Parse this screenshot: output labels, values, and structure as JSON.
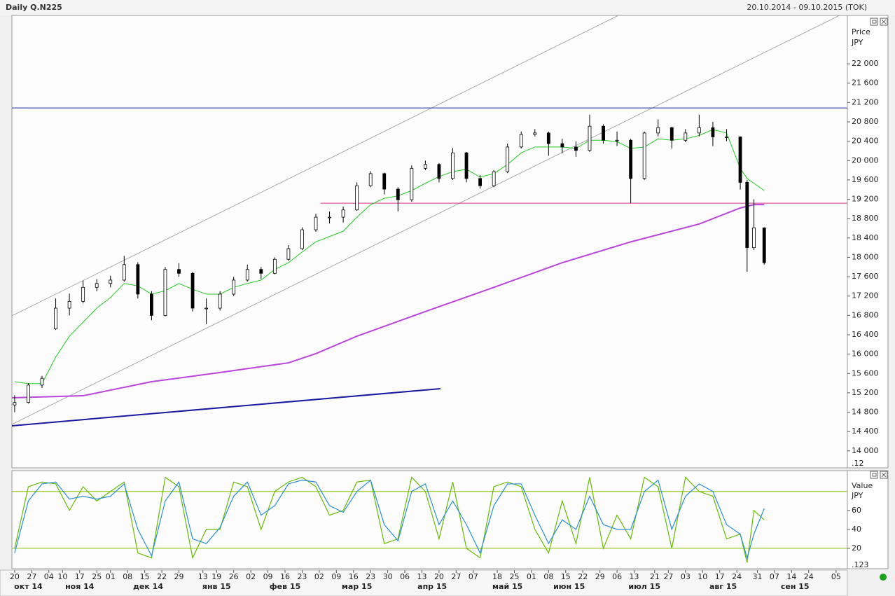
{
  "header": {
    "title": "Daily Q.N225",
    "range": "20.10.2014 - 09.10.2015 (TOK)"
  },
  "chart_data": [
    {
      "type": "candlestick",
      "ylabel": "Price",
      "yunit": "JPY",
      "corner_label": ".12",
      "xlim": [
        -0.8,
        243.3
      ],
      "ylim": [
        13650,
        23000
      ],
      "yticks": [
        {
          "value": 14000,
          "label": "14 000"
        },
        {
          "value": 14400,
          "label": "14 400"
        },
        {
          "value": 14800,
          "label": "14 800"
        },
        {
          "value": 15200,
          "label": "15 200"
        },
        {
          "value": 15600,
          "label": "15 600"
        },
        {
          "value": 16000,
          "label": "16 000"
        },
        {
          "value": 16400,
          "label": "16 400"
        },
        {
          "value": 16800,
          "label": "16 800"
        },
        {
          "value": 17200,
          "label": "17 200"
        },
        {
          "value": 17600,
          "label": "17 600"
        },
        {
          "value": 18000,
          "label": "18 000"
        },
        {
          "value": 18400,
          "label": "18 400"
        },
        {
          "value": 18800,
          "label": "18 800"
        },
        {
          "value": 19200,
          "label": "19 200"
        },
        {
          "value": 19600,
          "label": "19 600"
        },
        {
          "value": 20000,
          "label": "20 000"
        },
        {
          "value": 20400,
          "label": "20 400"
        },
        {
          "value": 20800,
          "label": "20 800"
        },
        {
          "value": 21200,
          "label": "21 200"
        },
        {
          "value": 21600,
          "label": "21 600"
        },
        {
          "value": 22000,
          "label": "22 000"
        }
      ],
      "up_color": "#ffffff",
      "down_color": "#000000",
      "x": [
        0,
        4,
        8,
        12,
        16,
        20,
        24,
        28,
        32,
        36,
        40,
        44,
        48,
        52,
        56,
        60,
        64,
        68,
        72,
        76,
        80,
        84,
        88,
        92,
        96,
        100,
        104,
        108,
        112,
        116,
        120,
        124,
        128,
        132,
        136,
        140,
        144,
        148,
        152,
        156,
        160,
        164,
        168,
        172,
        176,
        180,
        184,
        188,
        192,
        196,
        200,
        204,
        208,
        212,
        214,
        216,
        219
      ],
      "open": [
        14950,
        15000,
        15360,
        16520,
        16950,
        17090,
        17380,
        17460,
        17530,
        17850,
        17240,
        16800,
        17750,
        17670,
        16950,
        16950,
        17240,
        17530,
        17750,
        17670,
        17960,
        18180,
        18570,
        18830,
        18830,
        18980,
        19480,
        19730,
        19410,
        19190,
        19840,
        19920,
        19630,
        20160,
        19630,
        19480,
        19770,
        20280,
        20540,
        20570,
        20350,
        20280,
        20210,
        20710,
        20420,
        20420,
        19630,
        20570,
        20680,
        20420,
        20570,
        20680,
        20490,
        20490,
        19550,
        18200,
        18610
      ],
      "high": [
        15150,
        15400,
        15550,
        17150,
        17250,
        17520,
        17550,
        17620,
        18030,
        17900,
        17300,
        17800,
        17880,
        17700,
        17150,
        17300,
        17600,
        17850,
        17800,
        18000,
        18250,
        18620,
        18900,
        18950,
        19050,
        19550,
        19780,
        19750,
        19450,
        19900,
        20000,
        19950,
        20260,
        20180,
        19700,
        19800,
        20350,
        20600,
        20650,
        20600,
        20450,
        20400,
        20950,
        20750,
        20600,
        20450,
        20600,
        20850,
        20700,
        20650,
        20950,
        20800,
        20650,
        20500,
        19600,
        19200,
        18620
      ],
      "low": [
        14800,
        14980,
        15300,
        16500,
        16800,
        17050,
        17300,
        17380,
        17500,
        17150,
        16700,
        16780,
        17600,
        16880,
        16620,
        16900,
        17200,
        17500,
        17550,
        17650,
        17930,
        18150,
        18530,
        18700,
        18720,
        18960,
        19450,
        19300,
        18950,
        19150,
        19800,
        19550,
        19600,
        19550,
        19420,
        19450,
        19740,
        20250,
        20500,
        20100,
        20150,
        20080,
        20180,
        20350,
        20300,
        19120,
        19600,
        20500,
        20250,
        20380,
        20500,
        20300,
        20400,
        19400,
        17700,
        18150,
        17850
      ],
      "close": [
        15000,
        15360,
        15500,
        16950,
        17090,
        17380,
        17460,
        17530,
        17850,
        17240,
        16800,
        17750,
        17670,
        16950,
        16950,
        17240,
        17530,
        17750,
        17670,
        17960,
        18180,
        18570,
        18830,
        18830,
        18980,
        19480,
        19730,
        19410,
        19190,
        19840,
        19920,
        19630,
        20160,
        19630,
        19480,
        19770,
        20280,
        20540,
        20570,
        20350,
        20280,
        20210,
        20710,
        20420,
        20420,
        19630,
        20570,
        20680,
        20420,
        20570,
        20680,
        20490,
        20490,
        19550,
        18200,
        18610,
        17890
      ],
      "overlays": [
        {
          "color": "#22cc22",
          "x": [
            0,
            4,
            8,
            12,
            16,
            20,
            24,
            28,
            32,
            36,
            40,
            44,
            48,
            52,
            56,
            60,
            64,
            68,
            72,
            76,
            80,
            84,
            88,
            92,
            96,
            100,
            104,
            108,
            112,
            116,
            120,
            124,
            128,
            132,
            136,
            140,
            144,
            148,
            152,
            156,
            160,
            164,
            168,
            172,
            176,
            180,
            184,
            188,
            192,
            196,
            200,
            204,
            208,
            212,
            214,
            216,
            219
          ],
          "values": [
            15430,
            15390,
            15390,
            15940,
            16370,
            16660,
            16950,
            17170,
            17460,
            17410,
            17240,
            17310,
            17460,
            17340,
            17240,
            17240,
            17380,
            17460,
            17530,
            17750,
            17890,
            18110,
            18320,
            18430,
            18540,
            18830,
            19090,
            19220,
            19270,
            19380,
            19530,
            19670,
            19770,
            19820,
            19660,
            19730,
            19920,
            20160,
            20280,
            20280,
            20280,
            20250,
            20420,
            20420,
            20390,
            20250,
            20280,
            20450,
            20420,
            20450,
            20520,
            20640,
            20570,
            19840,
            19630,
            19530,
            19380
          ]
        },
        {
          "color": "#bb44dd",
          "x": [
            -0.8,
            0,
            20,
            40,
            60,
            80,
            88,
            100,
            120,
            140,
            160,
            180,
            200,
            212,
            216,
            219
          ],
          "values": [
            15100,
            15100,
            15140,
            15430,
            15620,
            15820,
            16010,
            16370,
            16880,
            17380,
            17890,
            18320,
            18690,
            19020,
            19090,
            19090
          ]
        }
      ],
      "hlines": [
        {
          "color": "#1c2fa8",
          "x": [
            -0.8,
            243.3
          ],
          "values": [
            21088,
            21088
          ]
        },
        {
          "color": "#d6338a",
          "x": [
            89.4,
            243.3
          ],
          "values": [
            19120,
            19120
          ]
        }
      ],
      "trendlines": [
        {
          "color": "#aaaaaa",
          "x": [
            -0.8,
            176.4
          ],
          "values": [
            16791,
            23000
          ]
        },
        {
          "color": "#aaaaaa",
          "x": [
            -0.8,
            241
          ],
          "values": [
            14548,
            23000
          ]
        },
        {
          "color": "#1a1aa0",
          "x": [
            -0.8,
            124.4
          ],
          "values": [
            14519,
            15286
          ]
        }
      ]
    },
    {
      "type": "line",
      "ylabel": "Value",
      "yunit": "JPY",
      "corner_label": ".123",
      "xlim": [
        -0.8,
        243.3
      ],
      "ylim": [
        -1.5,
        102
      ],
      "yticks": [
        20,
        40,
        60
      ],
      "lines": [
        {
          "color": "#66bb00",
          "x": [
            0,
            4,
            8,
            12,
            16,
            20,
            24,
            28,
            32,
            36,
            40,
            44,
            48,
            52,
            56,
            60,
            64,
            68,
            72,
            76,
            80,
            84,
            88,
            92,
            96,
            100,
            104,
            108,
            112,
            116,
            120,
            124,
            128,
            132,
            136,
            140,
            144,
            148,
            152,
            156,
            160,
            164,
            168,
            172,
            176,
            180,
            184,
            188,
            192,
            196,
            200,
            204,
            208,
            212,
            214,
            216,
            219
          ],
          "values": [
            20,
            85,
            90,
            88,
            60,
            85,
            70,
            80,
            90,
            15,
            10,
            95,
            85,
            10,
            40,
            40,
            90,
            85,
            40,
            80,
            90,
            95,
            85,
            55,
            60,
            90,
            92,
            25,
            30,
            95,
            80,
            30,
            90,
            20,
            10,
            85,
            90,
            85,
            40,
            15,
            70,
            25,
            95,
            20,
            55,
            30,
            95,
            85,
            20,
            95,
            80,
            75,
            30,
            35,
            5,
            60,
            50
          ]
        },
        {
          "color": "#2a8fd8",
          "x": [
            0,
            4,
            8,
            12,
            16,
            20,
            24,
            28,
            32,
            36,
            40,
            44,
            48,
            52,
            56,
            60,
            64,
            68,
            72,
            76,
            80,
            84,
            88,
            92,
            96,
            100,
            104,
            108,
            112,
            116,
            120,
            124,
            128,
            132,
            136,
            140,
            144,
            148,
            152,
            156,
            160,
            164,
            168,
            172,
            176,
            180,
            184,
            188,
            192,
            196,
            200,
            204,
            208,
            212,
            214,
            216,
            219
          ],
          "values": [
            15,
            70,
            88,
            90,
            72,
            75,
            72,
            75,
            88,
            40,
            12,
            70,
            90,
            30,
            25,
            42,
            75,
            90,
            55,
            65,
            88,
            92,
            90,
            65,
            58,
            80,
            92,
            45,
            28,
            80,
            88,
            45,
            70,
            45,
            15,
            65,
            88,
            88,
            55,
            25,
            50,
            40,
            75,
            45,
            40,
            40,
            80,
            92,
            40,
            75,
            88,
            80,
            45,
            35,
            10,
            35,
            62
          ]
        }
      ],
      "hlines": [
        {
          "color": "#88c000",
          "x": [
            -0.8,
            243.3
          ],
          "values": [
            80,
            80
          ]
        },
        {
          "color": "#88c000",
          "x": [
            -0.8,
            243.3
          ],
          "values": [
            20,
            20
          ]
        }
      ],
      "xticks": [
        {
          "value": 0,
          "label": "20"
        },
        {
          "value": 5,
          "label": "27"
        },
        {
          "value": 10,
          "label": "04"
        },
        {
          "value": 14,
          "label": "10"
        },
        {
          "value": 19,
          "label": "17"
        },
        {
          "value": 24,
          "label": "25"
        },
        {
          "value": 28,
          "label": "01"
        },
        {
          "value": 33,
          "label": "08"
        },
        {
          "value": 38,
          "label": "15"
        },
        {
          "value": 43,
          "label": "22"
        },
        {
          "value": 48,
          "label": "29"
        },
        {
          "value": 55,
          "label": "13"
        },
        {
          "value": 59,
          "label": "19"
        },
        {
          "value": 64,
          "label": "26"
        },
        {
          "value": 69,
          "label": "02"
        },
        {
          "value": 74,
          "label": "09"
        },
        {
          "value": 79,
          "label": "16"
        },
        {
          "value": 84,
          "label": "23"
        },
        {
          "value": 89,
          "label": "02"
        },
        {
          "value": 94,
          "label": "09"
        },
        {
          "value": 99,
          "label": "16"
        },
        {
          "value": 104,
          "label": "23"
        },
        {
          "value": 109,
          "label": "30"
        },
        {
          "value": 114,
          "label": "06"
        },
        {
          "value": 119,
          "label": "13"
        },
        {
          "value": 124,
          "label": "20"
        },
        {
          "value": 129,
          "label": "27"
        },
        {
          "value": 134,
          "label": "07"
        },
        {
          "value": 141,
          "label": "18"
        },
        {
          "value": 146,
          "label": "25"
        },
        {
          "value": 151,
          "label": "01"
        },
        {
          "value": 156,
          "label": "08"
        },
        {
          "value": 161,
          "label": "15"
        },
        {
          "value": 166,
          "label": "22"
        },
        {
          "value": 171,
          "label": "29"
        },
        {
          "value": 176,
          "label": "06"
        },
        {
          "value": 181,
          "label": "13"
        },
        {
          "value": 187,
          "label": "21"
        },
        {
          "value": 191,
          "label": "27"
        },
        {
          "value": 196,
          "label": "03"
        },
        {
          "value": 201,
          "label": "10"
        },
        {
          "value": 206,
          "label": "17"
        },
        {
          "value": 211,
          "label": "24"
        },
        {
          "value": 217,
          "label": "31"
        },
        {
          "value": 222,
          "label": "07"
        },
        {
          "value": 227,
          "label": "14"
        },
        {
          "value": 232,
          "label": "24"
        },
        {
          "value": 240,
          "label": "05"
        }
      ],
      "month_labels": [
        {
          "value": 4,
          "label": "окт 14"
        },
        {
          "value": 19,
          "label": "ноя 14"
        },
        {
          "value": 39,
          "label": "дек 14"
        },
        {
          "value": 59,
          "label": "янв 15"
        },
        {
          "value": 79,
          "label": "фев 15"
        },
        {
          "value": 100,
          "label": "мар 15"
        },
        {
          "value": 122,
          "label": "апр 15"
        },
        {
          "value": 144,
          "label": "май 15"
        },
        {
          "value": 162,
          "label": "июн 15"
        },
        {
          "value": 184,
          "label": "июл 15"
        },
        {
          "value": 207,
          "label": "авг 15"
        },
        {
          "value": 228,
          "label": "сен 15"
        }
      ]
    }
  ]
}
